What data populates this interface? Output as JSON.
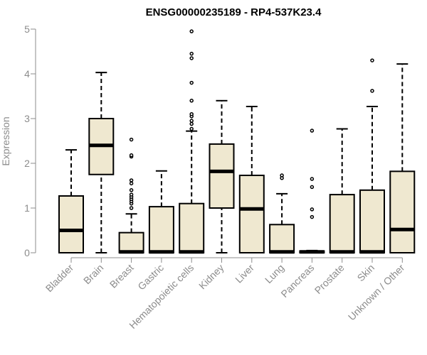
{
  "chart_data": {
    "type": "boxplot",
    "title": "ENSG00000235189 - RP4-537K23.4",
    "ylabel": "Expression",
    "ylim": [
      0,
      5
    ],
    "yticks": [
      "0",
      "1",
      "2",
      "3",
      "4",
      "5"
    ],
    "box_color": "#efe8d0",
    "categories": [
      "Bladder",
      "Brain",
      "Breast",
      "Gastric",
      "Hematopoietic cells",
      "Kidney",
      "Liver",
      "Lung",
      "Pancreas",
      "Prostate",
      "Skin",
      "Unknown / Other"
    ],
    "boxes": [
      {
        "q1": 0,
        "median": 0.5,
        "q3": 1.27,
        "whisker_low": 0,
        "whisker_high": 2.3,
        "outliers": []
      },
      {
        "q1": 1.75,
        "median": 2.4,
        "q3": 3.0,
        "whisker_low": 0,
        "whisker_high": 4.03,
        "outliers": []
      },
      {
        "q1": 0,
        "median": 0.02,
        "q3": 0.45,
        "whisker_low": 0,
        "whisker_high": 0.87,
        "outliers": [
          1.0,
          1.1,
          1.15,
          1.2,
          1.25,
          1.3,
          1.4,
          1.55,
          1.62,
          2.15,
          2.18,
          2.53
        ]
      },
      {
        "q1": 0,
        "median": 0.02,
        "q3": 1.03,
        "whisker_low": 0,
        "whisker_high": 1.83,
        "outliers": []
      },
      {
        "q1": 0,
        "median": 0.02,
        "q3": 1.1,
        "whisker_low": 0,
        "whisker_high": 2.72,
        "outliers": [
          2.77,
          2.88,
          2.95,
          3.05,
          3.1,
          3.4,
          3.8,
          4.35,
          4.45,
          4.95
        ]
      },
      {
        "q1": 1.0,
        "median": 1.82,
        "q3": 2.43,
        "whisker_low": 0,
        "whisker_high": 3.4,
        "outliers": []
      },
      {
        "q1": 0,
        "median": 0.98,
        "q3": 1.73,
        "whisker_low": 0,
        "whisker_high": 3.27,
        "outliers": []
      },
      {
        "q1": 0,
        "median": 0.02,
        "q3": 0.63,
        "whisker_low": 0,
        "whisker_high": 1.32,
        "outliers": [
          1.67,
          1.73
        ]
      },
      {
        "q1": 0,
        "median": 0.02,
        "q3": 0.04,
        "whisker_low": 0,
        "whisker_high": 0.05,
        "outliers": [
          0.8,
          0.97,
          1.47,
          1.65,
          2.73
        ]
      },
      {
        "q1": 0,
        "median": 0.02,
        "q3": 1.3,
        "whisker_low": 0,
        "whisker_high": 2.77,
        "outliers": []
      },
      {
        "q1": 0,
        "median": 0.02,
        "q3": 1.4,
        "whisker_low": 0,
        "whisker_high": 3.27,
        "outliers": [
          3.62,
          4.3
        ]
      },
      {
        "q1": 0,
        "median": 0.52,
        "q3": 1.82,
        "whisker_low": 0,
        "whisker_high": 4.22,
        "outliers": []
      }
    ]
  }
}
